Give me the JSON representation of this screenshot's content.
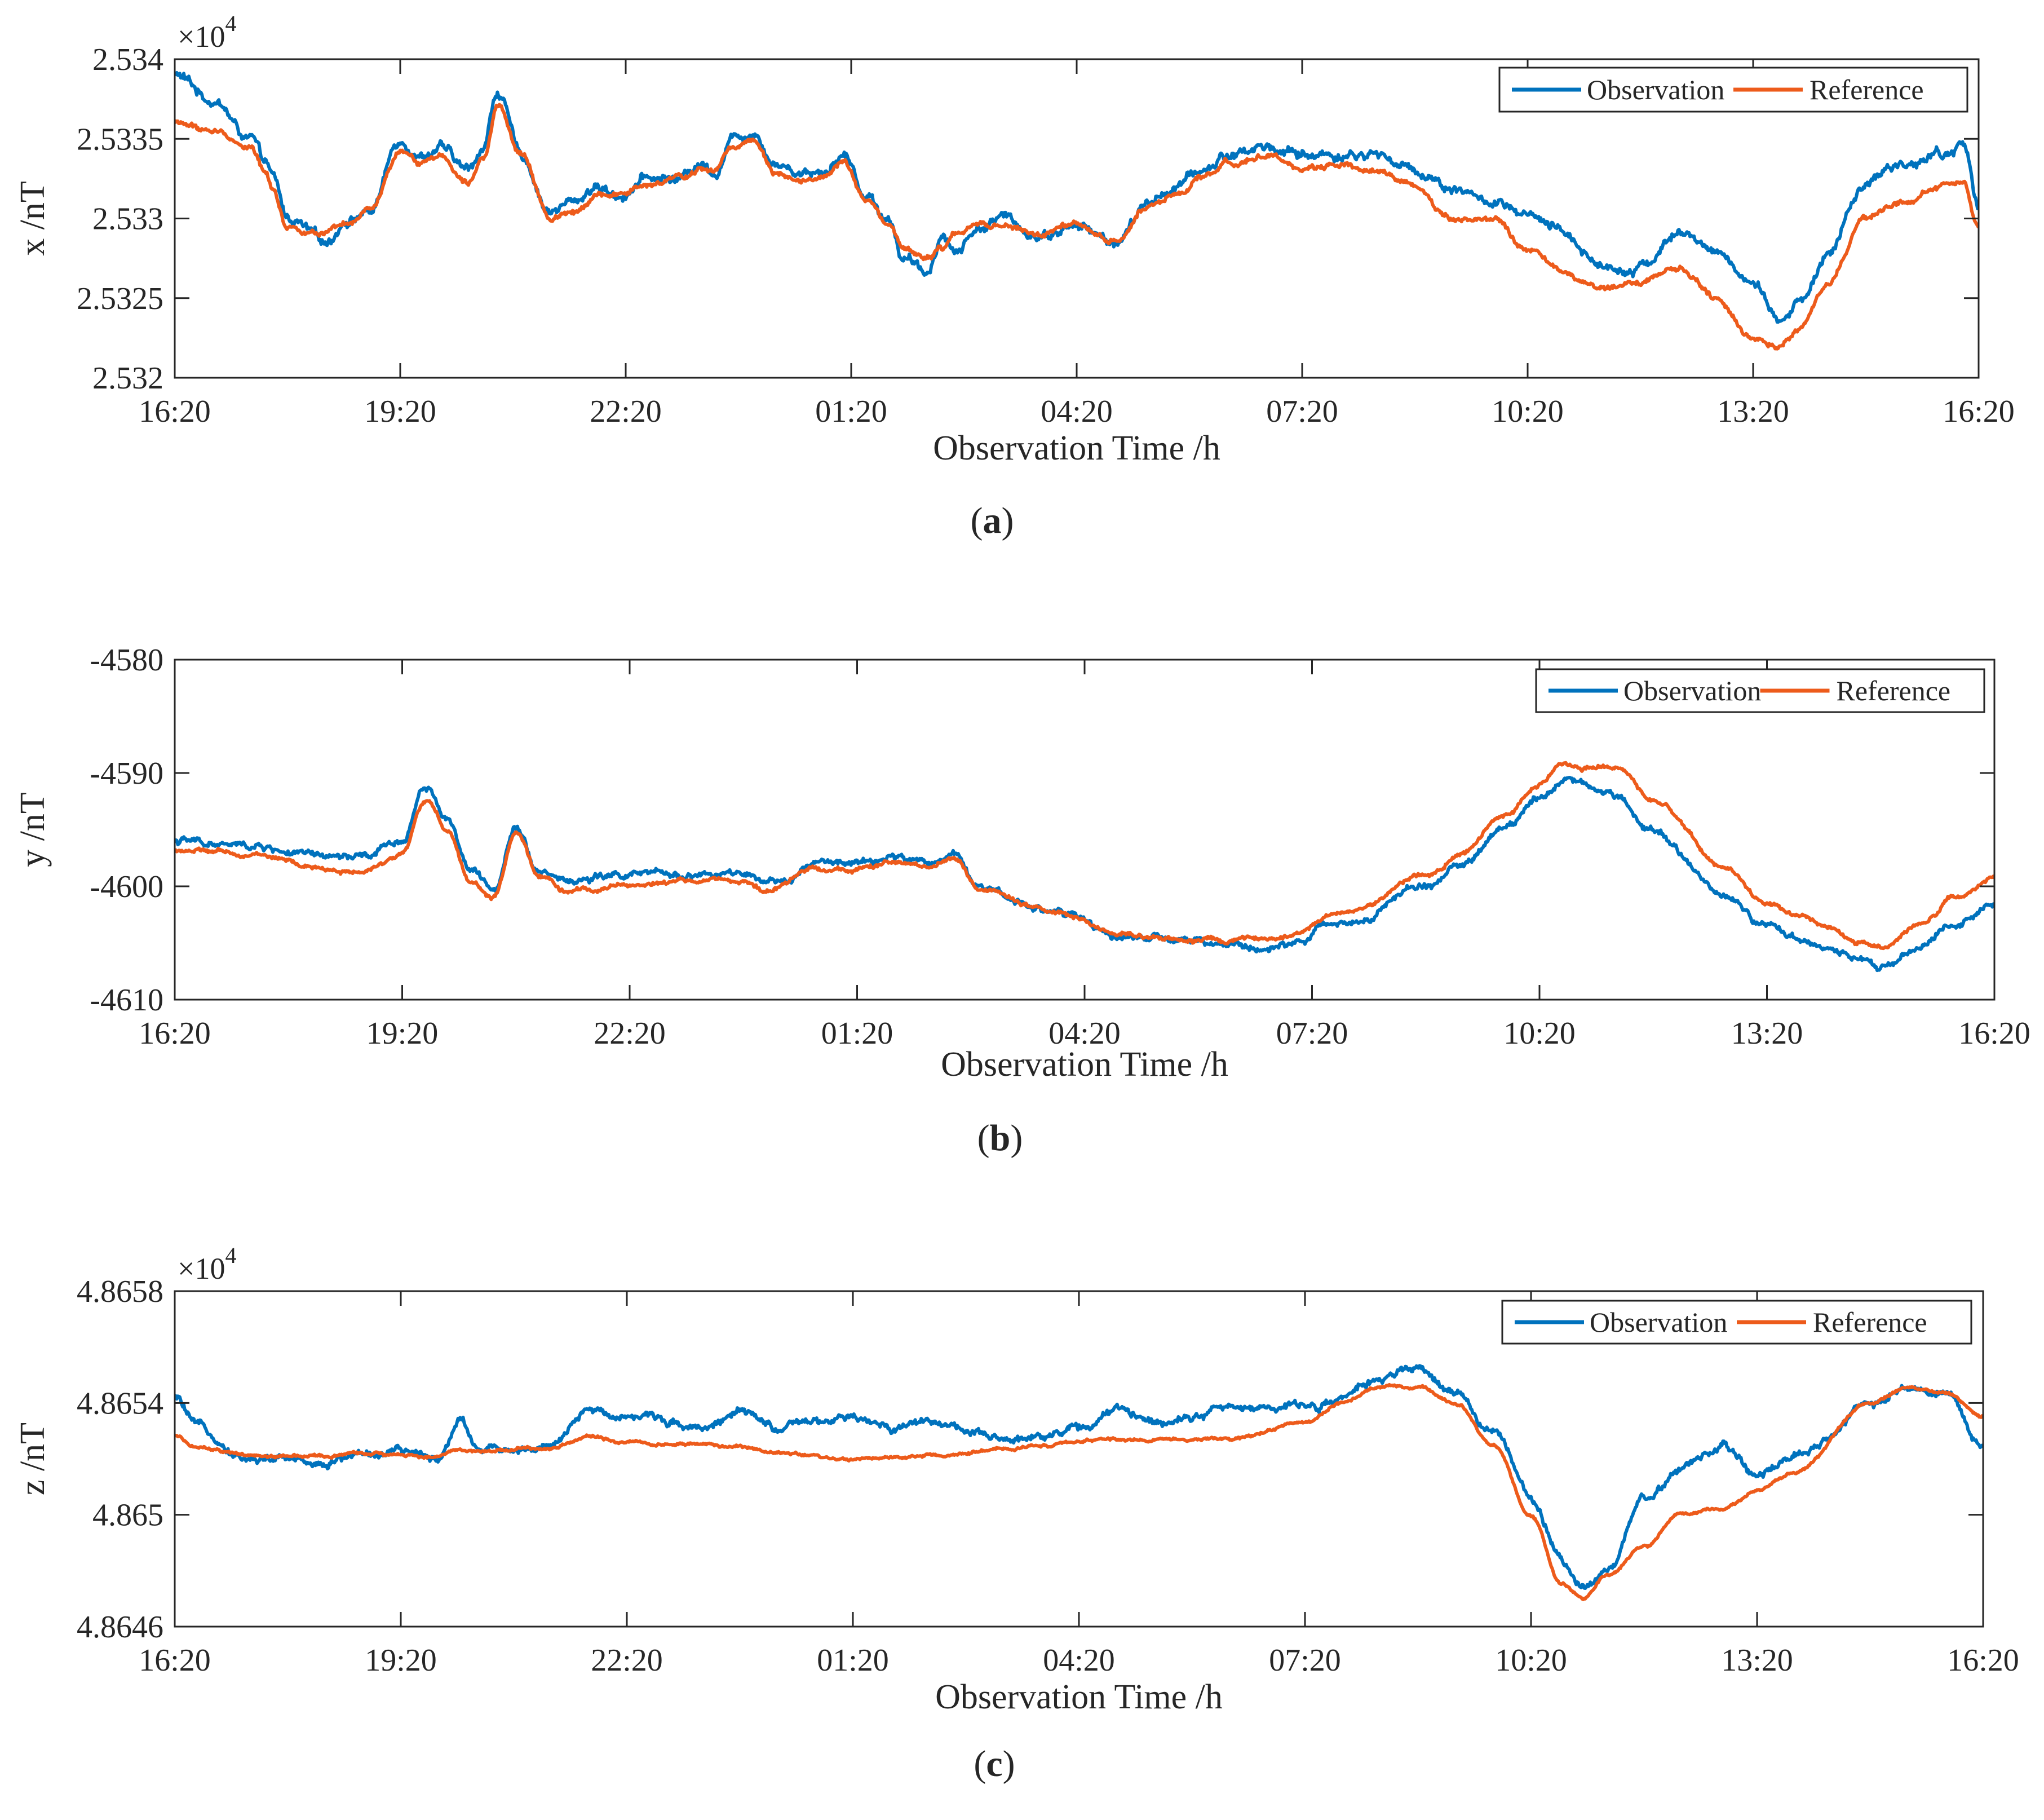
{
  "figure": {
    "series_colors": {
      "Observation": "#0072BD",
      "Reference": "#ED5B1B"
    }
  },
  "chart_data": [
    {
      "type": "line",
      "panel": "a",
      "caption_letter": "a",
      "title": "",
      "xlabel": "Observation Time /h",
      "ylabel": "x /nT",
      "multiplier_base": "×10",
      "multiplier_exp": "4",
      "x_unit": "hours since 16:20",
      "xlim": [
        0,
        24
      ],
      "ylim": [
        2.532,
        2.534
      ],
      "x_ticks": [
        0,
        3,
        6,
        9,
        12,
        15,
        18,
        21,
        24
      ],
      "x_tick_labels": [
        "16:20",
        "19:20",
        "22:20",
        "01:20",
        "04:20",
        "07:20",
        "10:20",
        "13:20",
        "16:20"
      ],
      "y_ticks": [
        2.532,
        2.5325,
        2.533,
        2.5335,
        2.534
      ],
      "y_tick_labels": [
        "2.532",
        "2.5325",
        "2.533",
        "2.5335",
        "2.534"
      ],
      "legend": {
        "position": "top-right",
        "entries": [
          "Observation",
          "Reference"
        ]
      },
      "noise": {
        "Observation": 3.5e-05,
        "Reference": 2e-05
      },
      "series": [
        {
          "name": "Observation",
          "x": [
            0,
            0.5,
            1.0,
            1.2,
            1.3,
            1.5,
            2.0,
            2.3,
            2.6,
            3.0,
            3.3,
            3.5,
            3.9,
            4.1,
            4.3,
            4.6,
            5.0,
            5.3,
            5.6,
            5.9,
            6.3,
            6.7,
            7.0,
            7.2,
            7.4,
            7.7,
            8.0,
            8.3,
            8.6,
            8.9,
            9.2,
            9.5,
            9.7,
            10.0,
            10.2,
            10.4,
            10.7,
            11.0,
            11.5,
            12.0,
            12.5,
            13.0,
            13.3,
            13.7,
            14.0,
            14.5,
            15.0,
            15.5,
            16.0,
            16.5,
            17.0,
            17.5,
            18.0,
            18.5,
            19.0,
            19.5,
            20.0,
            20.5,
            21.0,
            21.3,
            21.6,
            22.0,
            22.5,
            23.0,
            23.5,
            23.8,
            24.0
          ],
          "y": [
            2.5339,
            2.53375,
            2.5335,
            2.53335,
            2.53325,
            2.533,
            2.53285,
            2.533,
            2.53305,
            2.5335,
            2.5334,
            2.53345,
            2.5333,
            2.53345,
            2.5338,
            2.5334,
            2.53305,
            2.5331,
            2.5332,
            2.53315,
            2.53325,
            2.53325,
            2.53335,
            2.5333,
            2.5335,
            2.53355,
            2.53335,
            2.5333,
            2.5333,
            2.5334,
            2.53315,
            2.533,
            2.53275,
            2.53265,
            2.5329,
            2.5328,
            2.53295,
            2.533,
            2.5329,
            2.53295,
            2.53285,
            2.5331,
            2.5332,
            2.5333,
            2.5334,
            2.53345,
            2.5334,
            2.5334,
            2.5334,
            2.5333,
            2.5332,
            2.5331,
            2.533,
            2.5329,
            2.5327,
            2.5327,
            2.5329,
            2.5328,
            2.5326,
            2.53235,
            2.53245,
            2.5328,
            2.5332,
            2.53335,
            2.5334,
            2.53345,
            2.5331
          ]
        },
        {
          "name": "Reference",
          "x": [
            0,
            0.5,
            1.0,
            1.2,
            1.3,
            1.5,
            2.0,
            2.3,
            2.6,
            3.0,
            3.3,
            3.5,
            3.9,
            4.1,
            4.3,
            4.6,
            5.0,
            5.3,
            5.6,
            5.9,
            6.3,
            6.7,
            7.0,
            7.2,
            7.4,
            7.7,
            8.0,
            8.3,
            8.6,
            8.9,
            9.2,
            9.5,
            9.7,
            10.0,
            10.2,
            10.4,
            10.7,
            11.0,
            11.5,
            12.0,
            12.5,
            13.0,
            13.3,
            13.7,
            14.0,
            14.5,
            15.0,
            15.5,
            16.0,
            16.5,
            17.0,
            17.5,
            18.0,
            18.5,
            19.0,
            19.5,
            20.0,
            20.5,
            21.0,
            21.3,
            21.6,
            22.0,
            22.5,
            23.0,
            23.5,
            23.8,
            24.0
          ],
          "y": [
            2.5336,
            2.53355,
            2.53345,
            2.5333,
            2.5332,
            2.53295,
            2.5329,
            2.53295,
            2.53305,
            2.5334,
            2.53335,
            2.5334,
            2.53325,
            2.5334,
            2.5337,
            2.5334,
            2.533,
            2.53305,
            2.53315,
            2.53315,
            2.5332,
            2.53325,
            2.5333,
            2.5333,
            2.53345,
            2.5335,
            2.5333,
            2.53325,
            2.53325,
            2.53335,
            2.5331,
            2.53295,
            2.5328,
            2.53275,
            2.5328,
            2.5329,
            2.53295,
            2.53295,
            2.5329,
            2.53295,
            2.53285,
            2.5331,
            2.53315,
            2.53325,
            2.53335,
            2.5334,
            2.5333,
            2.53335,
            2.5333,
            2.5332,
            2.533,
            2.533,
            2.5328,
            2.53265,
            2.53255,
            2.5326,
            2.5327,
            2.5325,
            2.53225,
            2.5322,
            2.5323,
            2.5326,
            2.533,
            2.5331,
            2.5332,
            2.5332,
            2.53295
          ]
        }
      ]
    },
    {
      "type": "line",
      "panel": "b",
      "caption_letter": "b",
      "title": "",
      "xlabel": "Observation Time /h",
      "ylabel": "y /nT",
      "x_unit": "hours since 16:20",
      "xlim": [
        0,
        24
      ],
      "ylim": [
        -4610,
        -4580
      ],
      "x_ticks": [
        0,
        3,
        6,
        9,
        12,
        15,
        18,
        21,
        24
      ],
      "x_tick_labels": [
        "16:20",
        "19:20",
        "22:20",
        "01:20",
        "04:20",
        "07:20",
        "10:20",
        "13:20",
        "16:20"
      ],
      "y_ticks": [
        -4610,
        -4600,
        -4590,
        -4580
      ],
      "y_tick_labels": [
        "-4610",
        "-4600",
        "-4590",
        "-4580"
      ],
      "legend": {
        "position": "top-right",
        "entries": [
          "Observation",
          "Reference"
        ]
      },
      "noise": {
        "Observation": 0.35,
        "Reference": 0.22
      },
      "series": [
        {
          "name": "Observation",
          "x": [
            0,
            1,
            2,
            2.5,
            3.0,
            3.3,
            3.6,
            3.9,
            4.2,
            4.5,
            4.8,
            5.2,
            6,
            7,
            7.5,
            7.8,
            8.5,
            9.0,
            9.5,
            10.0,
            10.3,
            10.6,
            11.5,
            12.5,
            13.5,
            14.5,
            15.5,
            16.5,
            17.0,
            17.5,
            18.0,
            18.3,
            18.6,
            19,
            19.5,
            20.5,
            21.0,
            21.4,
            21.8,
            22.2,
            22.5,
            23,
            23.5,
            24
          ],
          "y": [
            -4596,
            -4596.5,
            -4597.5,
            -4597.5,
            -4596,
            -4591,
            -4594,
            -4598.5,
            -4600.5,
            -4594.5,
            -4598.5,
            -4599.5,
            -4599,
            -4599,
            -4599,
            -4600,
            -4598,
            -4598,
            -4597.5,
            -4598,
            -4597,
            -4600,
            -4602,
            -4604.5,
            -4605,
            -4605.5,
            -4603,
            -4600,
            -4598,
            -4595,
            -4592,
            -4590.5,
            -4591,
            -4592,
            -4595,
            -4601,
            -4603.5,
            -4604.5,
            -4605.5,
            -4606,
            -4607,
            -4605.5,
            -4603,
            -4601.5
          ]
        },
        {
          "name": "Reference",
          "x": [
            0,
            1,
            2,
            2.5,
            3.0,
            3.3,
            3.6,
            3.9,
            4.2,
            4.5,
            4.8,
            5.2,
            6,
            7,
            7.5,
            7.8,
            8.5,
            9.0,
            9.5,
            10.0,
            10.3,
            10.6,
            11.5,
            12.5,
            13.5,
            14.5,
            15.5,
            16.5,
            17.0,
            17.5,
            18.0,
            18.3,
            18.6,
            19,
            19.5,
            20.5,
            21.0,
            21.4,
            21.8,
            22.2,
            22.5,
            23,
            23.5,
            24
          ],
          "y": [
            -4596.8,
            -4597.2,
            -4598.5,
            -4598.8,
            -4597,
            -4592.5,
            -4595,
            -4599.5,
            -4601,
            -4595.5,
            -4599,
            -4600.5,
            -4599.8,
            -4599.5,
            -4599.5,
            -4600.5,
            -4598.3,
            -4598.5,
            -4598,
            -4598.3,
            -4597.5,
            -4600.2,
            -4602.2,
            -4604.2,
            -4604.8,
            -4604.8,
            -4602.2,
            -4599,
            -4597,
            -4594,
            -4591,
            -4589.2,
            -4589.5,
            -4589.5,
            -4592.5,
            -4598.5,
            -4601.5,
            -4602.5,
            -4603.5,
            -4604.8,
            -4605.5,
            -4603.5,
            -4601,
            -4599.2
          ]
        }
      ]
    },
    {
      "type": "line",
      "panel": "c",
      "caption_letter": "c",
      "title": "",
      "xlabel": "Observation Time /h",
      "ylabel": "z /nT",
      "multiplier_base": "×10",
      "multiplier_exp": "4",
      "x_unit": "hours since 16:20",
      "xlim": [
        0,
        24
      ],
      "ylim": [
        4.8646,
        4.8658
      ],
      "x_ticks": [
        0,
        3,
        6,
        9,
        12,
        15,
        18,
        21,
        24
      ],
      "x_tick_labels": [
        "16:20",
        "19:20",
        "22:20",
        "01:20",
        "04:20",
        "07:20",
        "10:20",
        "13:20",
        "16:20"
      ],
      "y_ticks": [
        4.8646,
        4.865,
        4.8654,
        4.8658
      ],
      "y_tick_labels": [
        "4.8646",
        "4.865",
        "4.8654",
        "4.8658"
      ],
      "legend": {
        "position": "top-right",
        "entries": [
          "Observation",
          "Reference"
        ]
      },
      "noise": {
        "Observation": 1.6e-05,
        "Reference": 6e-06
      },
      "series": [
        {
          "name": "Observation",
          "x": [
            0,
            0.3,
            1,
            2,
            2.5,
            3.0,
            3.5,
            3.8,
            4,
            5,
            5.5,
            6,
            7,
            7.5,
            8,
            9,
            9.5,
            10,
            11,
            11.5,
            12,
            12.5,
            13,
            14,
            15,
            15.5,
            16,
            16.5,
            17.0,
            17.5,
            18.0,
            18.4,
            18.7,
            19.0,
            19.5,
            20.0,
            20.5,
            21.0,
            21.5,
            22.5,
            23.0,
            23.5,
            24
          ],
          "y": [
            4.86542,
            4.86531,
            4.8652,
            4.86519,
            4.86522,
            4.86522,
            4.86521,
            4.86535,
            4.86524,
            4.86524,
            4.86537,
            4.86536,
            4.86532,
            4.86536,
            4.86531,
            4.86534,
            4.86531,
            4.86534,
            4.86526,
            4.86529,
            4.86531,
            4.86537,
            4.86534,
            4.86538,
            4.86539,
            4.86541,
            4.86549,
            4.86552,
            4.86543,
            4.8653,
            4.86506,
            4.86485,
            4.86474,
            4.8648,
            4.86506,
            4.86516,
            4.86524,
            4.86515,
            4.8652,
            4.86539,
            4.86546,
            4.86544,
            4.86525
          ]
        },
        {
          "name": "Reference",
          "x": [
            0,
            0.3,
            1,
            2,
            2.5,
            3.0,
            3.5,
            3.8,
            4,
            5,
            5.5,
            6,
            7,
            7.5,
            8,
            9,
            9.5,
            10,
            11,
            11.5,
            12,
            12.5,
            13,
            14,
            15,
            15.5,
            16,
            16.5,
            17.0,
            17.5,
            18.0,
            18.4,
            18.7,
            19.0,
            19.5,
            20.0,
            20.5,
            21.0,
            21.5,
            22.5,
            23.0,
            23.5,
            24
          ],
          "y": [
            4.86528,
            4.86524,
            4.86521,
            4.86521,
            4.86522,
            4.86521,
            4.86521,
            4.86523,
            4.86523,
            4.86524,
            4.86528,
            4.86526,
            4.86525,
            4.86524,
            4.86522,
            4.8652,
            4.8652,
            4.86521,
            4.86523,
            4.86525,
            4.86526,
            4.86527,
            4.86527,
            4.86527,
            4.86533,
            4.8654,
            4.86546,
            4.86545,
            4.8654,
            4.86525,
            4.865,
            4.86475,
            4.8647,
            4.86478,
            4.86489,
            4.865,
            4.86502,
            4.86508,
            4.86515,
            4.8654,
            4.86546,
            4.86544,
            4.86535
          ]
        }
      ]
    }
  ]
}
